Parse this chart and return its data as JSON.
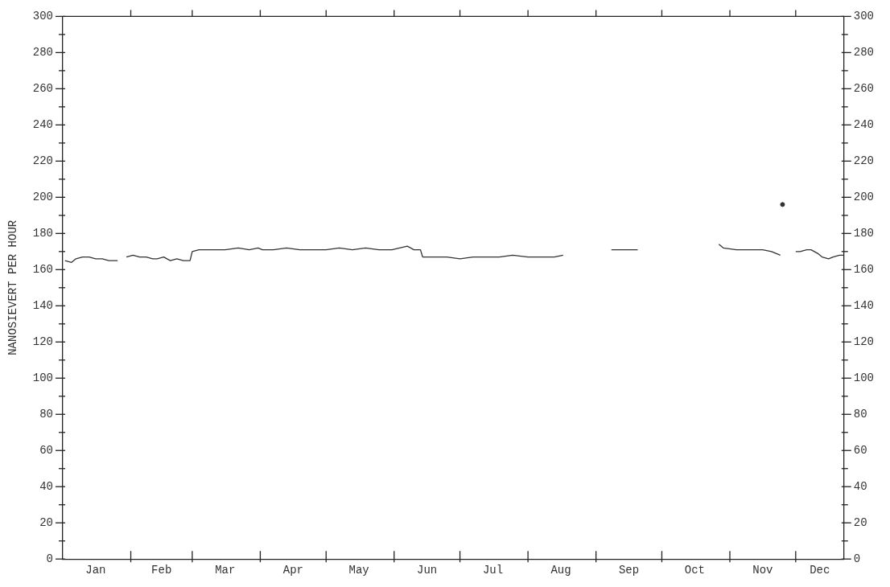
{
  "chart_data": {
    "type": "line",
    "ylabel": "NANOSIEVERT PER HOUR",
    "xlim": [
      "--01-01",
      "--12-23"
    ],
    "xticks": [
      {
        "value": "--01-16",
        "label": "Jan"
      },
      {
        "value": "--02-01",
        "label": null
      },
      {
        "value": "--02-15",
        "label": "Feb"
      },
      {
        "value": "--03-01",
        "label": null
      },
      {
        "value": "--03-16",
        "label": "Mar"
      },
      {
        "value": "--04-01",
        "label": null
      },
      {
        "value": "--04-16",
        "label": "Apr"
      },
      {
        "value": "--05-01",
        "label": null
      },
      {
        "value": "--05-16",
        "label": "May"
      },
      {
        "value": "--06-01",
        "label": null
      },
      {
        "value": "--06-16",
        "label": "Jun"
      },
      {
        "value": "--07-01",
        "label": null
      },
      {
        "value": "--07-16",
        "label": "Jul"
      },
      {
        "value": "--08-01",
        "label": null
      },
      {
        "value": "--08-16",
        "label": "Aug"
      },
      {
        "value": "--09-01",
        "label": null
      },
      {
        "value": "--09-16",
        "label": "Sep"
      },
      {
        "value": "--10-01",
        "label": null
      },
      {
        "value": "--10-16",
        "label": "Oct"
      },
      {
        "value": "--11-01",
        "label": null
      },
      {
        "value": "--11-16",
        "label": "Nov"
      },
      {
        "value": "--12-01",
        "label": null
      },
      {
        "value": "--12-12",
        "label": "Dec"
      }
    ],
    "ylim": [
      0,
      300
    ],
    "yticks": [
      0,
      {
        "value": 10,
        "label": null
      },
      20,
      {
        "value": 30,
        "label": null
      },
      40,
      {
        "value": 50,
        "label": null
      },
      60,
      {
        "value": 70,
        "label": null
      },
      80,
      {
        "value": 90,
        "label": null
      },
      100,
      {
        "value": 110,
        "label": null
      },
      120,
      {
        "value": 130,
        "label": null
      },
      140,
      {
        "value": 150,
        "label": null
      },
      160,
      {
        "value": 170,
        "label": null
      },
      180,
      {
        "value": 190,
        "label": null
      },
      200,
      {
        "value": 210,
        "label": null
      },
      220,
      {
        "value": 230,
        "label": null
      },
      240,
      {
        "value": 250,
        "label": null
      },
      260,
      {
        "value": 270,
        "label": null
      },
      280,
      {
        "value": 290,
        "label": null
      },
      300
    ],
    "y2lim": [
      0,
      300
    ],
    "y2ticks": [
      0,
      {
        "value": 10,
        "label": null
      },
      20,
      {
        "value": 30,
        "label": null
      },
      40,
      {
        "value": 50,
        "label": null
      },
      60,
      {
        "value": 70,
        "label": null
      },
      80,
      {
        "value": 90,
        "label": null
      },
      100,
      {
        "value": 110,
        "label": null
      },
      120,
      {
        "value": 130,
        "label": null
      },
      140,
      {
        "value": 150,
        "label": null
      },
      160,
      {
        "value": 170,
        "label": null
      },
      180,
      {
        "value": 190,
        "label": null
      },
      200,
      {
        "value": 210,
        "label": null
      },
      220,
      {
        "value": 230,
        "label": null
      },
      240,
      {
        "value": 250,
        "label": null
      },
      260,
      {
        "value": 270,
        "label": null
      },
      280,
      {
        "value": 290,
        "label": null
      },
      300
    ],
    "grid": false,
    "legend": false,
    "marker": "none",
    "line_style": "solid",
    "series": [
      {
        "color": "#333333",
        "x": [
          "--01-02",
          "--01-05",
          "--01-07",
          "--01-10",
          "--01-13",
          "--01-16",
          "--01-19",
          "--01-22",
          "--01-26",
          "--01-28",
          "--01-30",
          "--02-02",
          "--02-05",
          "--02-08",
          "--02-11",
          "--02-13",
          "--02-16",
          "--02-19",
          "--02-22",
          "--02-25",
          "--02-28",
          "--03-01",
          "--03-04",
          "--03-10",
          "--03-16",
          "--03-22",
          "--03-27",
          "--03-31",
          "--04-02",
          "--04-07",
          "--04-13",
          "--04-19",
          "--04-25",
          "--05-01",
          "--05-07",
          "--05-13",
          "--05-19",
          "--05-25",
          "--05-31",
          "--06-07",
          "--06-10",
          "--06-13",
          "--06-14",
          "--06-19",
          "--06-25",
          "--07-01",
          "--07-07",
          "--07-13",
          "--07-19",
          "--07-25",
          "--08-01",
          "--08-07",
          "--08-13",
          "--08-17",
          "--08-28",
          "--09-08",
          "--09-13",
          "--09-17",
          "--09-20",
          "--10-07",
          "--10-27",
          "--10-29",
          "--11-04",
          "--11-10",
          "--11-16",
          "--11-20",
          "--11-24",
          "--11-27",
          "--12-01",
          "--12-03",
          "--12-06",
          "--12-08",
          "--12-11",
          "--12-13",
          "--12-16",
          "--12-18",
          "--12-21",
          "--12-23"
        ],
        "values": [
          165,
          164,
          166,
          167,
          167,
          166,
          166,
          165,
          165,
          null,
          167,
          168,
          167,
          167,
          166,
          166,
          167,
          165,
          166,
          165,
          165,
          170,
          171,
          171,
          171,
          172,
          171,
          172,
          171,
          171,
          172,
          171,
          171,
          171,
          172,
          171,
          172,
          171,
          171,
          173,
          171,
          171,
          167,
          167,
          167,
          166,
          167,
          167,
          167,
          168,
          167,
          167,
          167,
          168,
          null,
          171,
          171,
          171,
          171,
          null,
          174,
          172,
          171,
          171,
          171,
          170,
          168,
          null,
          170,
          170,
          171,
          171,
          169,
          167,
          166,
          167,
          168,
          168
        ]
      },
      {
        "type": "scatter",
        "marker": "circle",
        "color": "#333333",
        "x": [
          "--11-25"
        ],
        "values": [
          196
        ]
      }
    ]
  }
}
